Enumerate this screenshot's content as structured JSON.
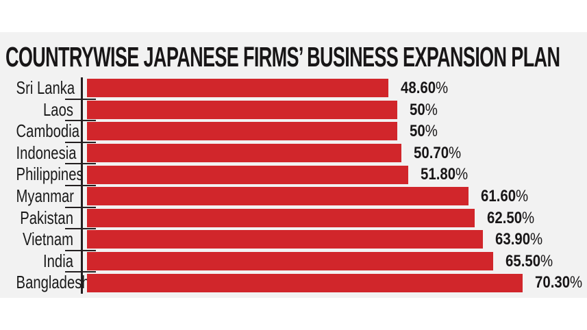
{
  "panel_background": "#f2f2f2",
  "page_background": "#ffffff",
  "chart_data": {
    "type": "bar",
    "orientation": "horizontal",
    "title": "COUNTRYWISE JAPANESE FIRMS’ BUSINESS EXPANSION PLAN",
    "categories": [
      "Sri Lanka",
      "Laos",
      "Cambodia",
      "Indonesia",
      "Philippines",
      "Myanmar",
      "Pakistan",
      "Vietnam",
      "India",
      "Bangladesh"
    ],
    "values": [
      48.6,
      50,
      50,
      50.7,
      51.8,
      61.6,
      62.5,
      63.9,
      65.5,
      70.3
    ],
    "value_numbers": [
      "48.60",
      "50",
      "50",
      "50.70",
      "51.80",
      "61.60",
      "62.50",
      "63.90",
      "65.50",
      "70.30"
    ],
    "value_labels": [
      "48.60%",
      "50%",
      "50%",
      "50.70%",
      "51.80%",
      "61.60%",
      "62.50%",
      "63.90%",
      "65.50%",
      "70.30%"
    ],
    "percent_sign": "%",
    "xlabel": "",
    "ylabel": "",
    "xlim": [
      0,
      80
    ],
    "grid": false,
    "legend": false,
    "bar_color": "#d1262b",
    "axis_color": "#231f20",
    "text_color": "#181617"
  }
}
